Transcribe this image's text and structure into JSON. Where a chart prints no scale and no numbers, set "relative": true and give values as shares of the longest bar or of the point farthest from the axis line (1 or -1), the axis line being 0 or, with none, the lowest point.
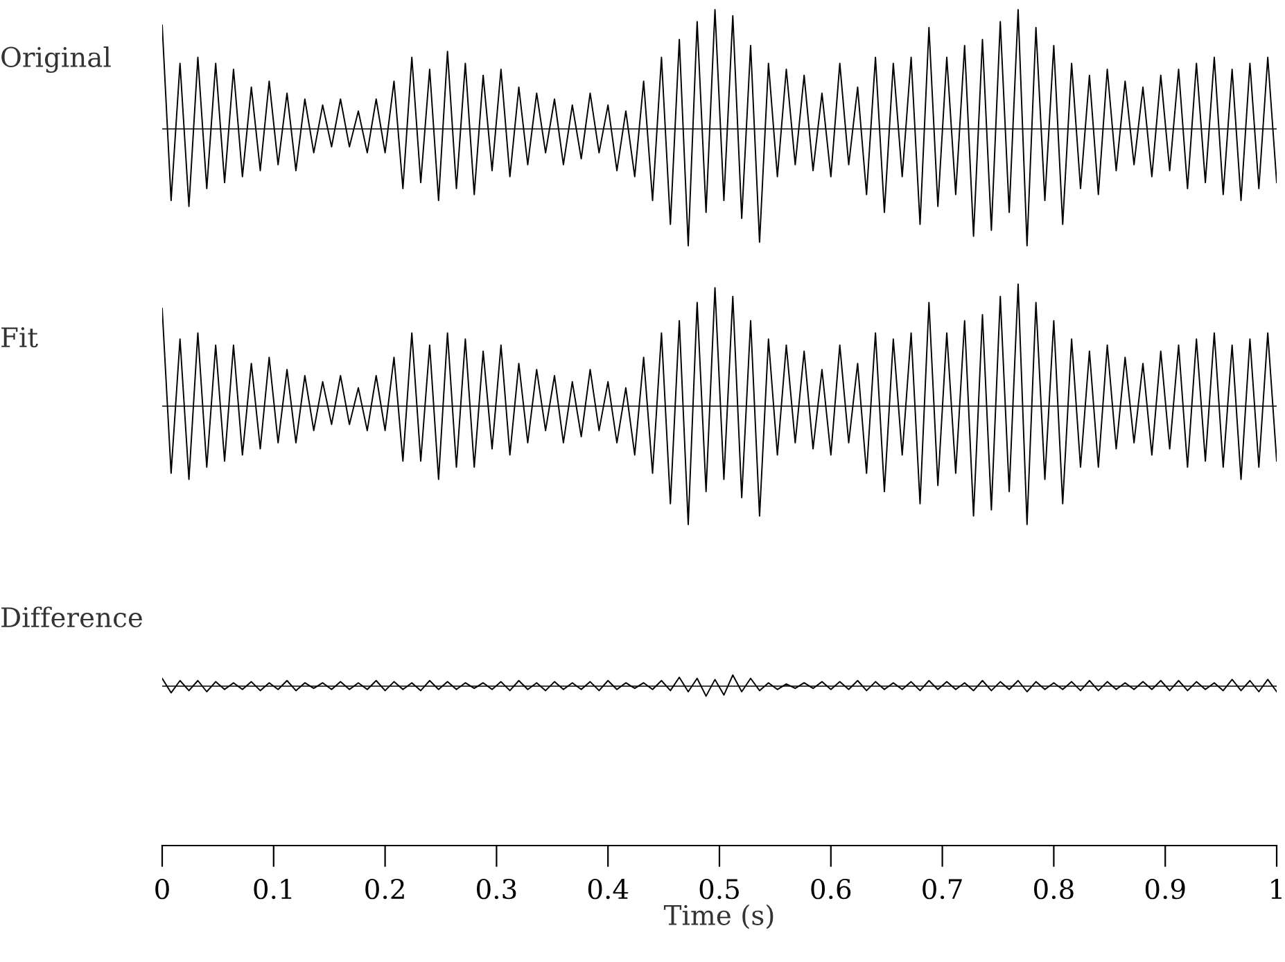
{
  "chart_data": [
    {
      "type": "line",
      "title": "Original",
      "relative": true,
      "xlim": [
        0,
        1
      ],
      "tick_labels": false,
      "x": [
        0,
        0.008,
        0.016,
        0.024,
        0.032,
        0.04,
        0.048,
        0.056,
        0.064,
        0.072,
        0.08,
        0.088,
        0.096,
        0.104,
        0.112,
        0.12,
        0.128,
        0.136,
        0.144,
        0.152,
        0.16,
        0.168,
        0.176,
        0.184,
        0.192,
        0.2,
        0.208,
        0.216,
        0.224,
        0.232,
        0.24,
        0.248,
        0.256,
        0.264,
        0.272,
        0.28,
        0.288,
        0.296,
        0.304,
        0.312,
        0.32,
        0.328,
        0.336,
        0.344,
        0.352,
        0.36,
        0.368,
        0.376,
        0.384,
        0.392,
        0.4,
        0.408,
        0.416,
        0.424,
        0.432,
        0.44,
        0.448,
        0.456,
        0.464,
        0.472,
        0.48,
        0.488,
        0.496,
        0.504,
        0.512,
        0.52,
        0.528,
        0.536,
        0.544,
        0.552,
        0.56,
        0.568,
        0.576,
        0.584,
        0.592,
        0.6,
        0.608,
        0.616,
        0.624,
        0.632,
        0.64,
        0.648,
        0.656,
        0.664,
        0.672,
        0.68,
        0.688,
        0.696,
        0.704,
        0.712,
        0.72,
        0.728,
        0.736,
        0.744,
        0.752,
        0.76,
        0.768,
        0.776,
        0.784,
        0.792,
        0.8,
        0.808,
        0.816,
        0.824,
        0.832,
        0.84,
        0.848,
        0.856,
        0.864,
        0.872,
        0.88,
        0.888,
        0.896,
        0.904,
        0.912,
        0.92,
        0.928,
        0.936,
        0.944,
        0.952,
        0.96,
        0.968,
        0.976,
        0.984,
        0.992,
        1.0
      ],
      "series": [
        {
          "color": "#000000",
          "values": [
            0.87,
            -0.6,
            0.55,
            -0.65,
            0.6,
            -0.5,
            0.55,
            -0.45,
            0.5,
            -0.4,
            0.35,
            -0.35,
            0.4,
            -0.3,
            0.3,
            -0.35,
            0.25,
            -0.2,
            0.2,
            -0.15,
            0.25,
            -0.15,
            0.15,
            -0.2,
            0.25,
            -0.2,
            0.4,
            -0.5,
            0.6,
            -0.45,
            0.5,
            -0.6,
            0.65,
            -0.5,
            0.55,
            -0.55,
            0.45,
            -0.35,
            0.5,
            -0.4,
            0.35,
            -0.3,
            0.3,
            -0.2,
            0.25,
            -0.3,
            0.2,
            -0.25,
            0.3,
            -0.2,
            0.2,
            -0.35,
            0.15,
            -0.4,
            0.4,
            -0.6,
            0.6,
            -0.8,
            0.75,
            -0.98,
            0.9,
            -0.7,
            1.0,
            -0.6,
            0.95,
            -0.75,
            0.7,
            -0.95,
            0.55,
            -0.4,
            0.5,
            -0.3,
            0.45,
            -0.35,
            0.3,
            -0.4,
            0.55,
            -0.3,
            0.35,
            -0.55,
            0.6,
            -0.7,
            0.55,
            -0.4,
            0.6,
            -0.8,
            0.85,
            -0.65,
            0.6,
            -0.55,
            0.7,
            -0.9,
            0.75,
            -0.85,
            0.9,
            -0.7,
            1.0,
            -0.98,
            0.85,
            -0.6,
            0.7,
            -0.8,
            0.55,
            -0.5,
            0.45,
            -0.55,
            0.5,
            -0.35,
            0.4,
            -0.3,
            0.35,
            -0.4,
            0.45,
            -0.35,
            0.5,
            -0.5,
            0.55,
            -0.45,
            0.6,
            -0.55,
            0.5,
            -0.6,
            0.55,
            -0.5,
            0.6,
            -0.45
          ]
        }
      ]
    },
    {
      "type": "line",
      "title": "Fit",
      "relative": true,
      "xlim": [
        0,
        1
      ],
      "tick_labels": false,
      "x": [
        0,
        0.008,
        0.016,
        0.024,
        0.032,
        0.04,
        0.048,
        0.056,
        0.064,
        0.072,
        0.08,
        0.088,
        0.096,
        0.104,
        0.112,
        0.12,
        0.128,
        0.136,
        0.144,
        0.152,
        0.16,
        0.168,
        0.176,
        0.184,
        0.192,
        0.2,
        0.208,
        0.216,
        0.224,
        0.232,
        0.24,
        0.248,
        0.256,
        0.264,
        0.272,
        0.28,
        0.288,
        0.296,
        0.304,
        0.312,
        0.32,
        0.328,
        0.336,
        0.344,
        0.352,
        0.36,
        0.368,
        0.376,
        0.384,
        0.392,
        0.4,
        0.408,
        0.416,
        0.424,
        0.432,
        0.44,
        0.448,
        0.456,
        0.464,
        0.472,
        0.48,
        0.488,
        0.496,
        0.504,
        0.512,
        0.52,
        0.528,
        0.536,
        0.544,
        0.552,
        0.56,
        0.568,
        0.576,
        0.584,
        0.592,
        0.6,
        0.608,
        0.616,
        0.624,
        0.632,
        0.64,
        0.648,
        0.656,
        0.664,
        0.672,
        0.68,
        0.688,
        0.696,
        0.704,
        0.712,
        0.72,
        0.728,
        0.736,
        0.744,
        0.752,
        0.76,
        0.768,
        0.776,
        0.784,
        0.792,
        0.8,
        0.808,
        0.816,
        0.824,
        0.832,
        0.84,
        0.848,
        0.856,
        0.864,
        0.872,
        0.88,
        0.888,
        0.896,
        0.904,
        0.912,
        0.92,
        0.928,
        0.936,
        0.944,
        0.952,
        0.96,
        0.968,
        0.976,
        0.984,
        0.992,
        1.0
      ],
      "series": [
        {
          "color": "#000000",
          "values": [
            0.8,
            -0.55,
            0.55,
            -0.6,
            0.6,
            -0.5,
            0.5,
            -0.45,
            0.5,
            -0.4,
            0.35,
            -0.35,
            0.4,
            -0.3,
            0.3,
            -0.3,
            0.25,
            -0.2,
            0.2,
            -0.15,
            0.25,
            -0.15,
            0.15,
            -0.2,
            0.25,
            -0.2,
            0.4,
            -0.45,
            0.6,
            -0.45,
            0.5,
            -0.6,
            0.6,
            -0.5,
            0.55,
            -0.5,
            0.45,
            -0.35,
            0.5,
            -0.4,
            0.35,
            -0.3,
            0.3,
            -0.2,
            0.25,
            -0.3,
            0.2,
            -0.25,
            0.3,
            -0.2,
            0.2,
            -0.3,
            0.15,
            -0.4,
            0.4,
            -0.55,
            0.6,
            -0.8,
            0.7,
            -0.97,
            0.85,
            -0.7,
            0.97,
            -0.6,
            0.9,
            -0.75,
            0.7,
            -0.9,
            0.55,
            -0.4,
            0.5,
            -0.3,
            0.45,
            -0.35,
            0.3,
            -0.4,
            0.5,
            -0.3,
            0.35,
            -0.55,
            0.6,
            -0.7,
            0.55,
            -0.4,
            0.6,
            -0.8,
            0.85,
            -0.65,
            0.6,
            -0.55,
            0.7,
            -0.9,
            0.75,
            -0.85,
            0.9,
            -0.7,
            1.0,
            -0.97,
            0.85,
            -0.6,
            0.7,
            -0.8,
            0.55,
            -0.5,
            0.45,
            -0.5,
            0.5,
            -0.35,
            0.4,
            -0.3,
            0.35,
            -0.4,
            0.45,
            -0.35,
            0.5,
            -0.5,
            0.55,
            -0.45,
            0.6,
            -0.5,
            0.5,
            -0.6,
            0.55,
            -0.5,
            0.6,
            -0.45
          ]
        }
      ]
    },
    {
      "type": "line",
      "title": "Difference",
      "relative": true,
      "xlabel": "Time (s)",
      "xlim": [
        0,
        1
      ],
      "xticks": [
        0,
        0.1,
        0.2,
        0.3,
        0.4,
        0.5,
        0.6,
        0.7,
        0.8,
        0.9,
        1
      ],
      "tick_labels": "x",
      "x": [
        0,
        0.008,
        0.016,
        0.024,
        0.032,
        0.04,
        0.048,
        0.056,
        0.064,
        0.072,
        0.08,
        0.088,
        0.096,
        0.104,
        0.112,
        0.12,
        0.128,
        0.136,
        0.144,
        0.152,
        0.16,
        0.168,
        0.176,
        0.184,
        0.192,
        0.2,
        0.208,
        0.216,
        0.224,
        0.232,
        0.24,
        0.248,
        0.256,
        0.264,
        0.272,
        0.28,
        0.288,
        0.296,
        0.304,
        0.312,
        0.32,
        0.328,
        0.336,
        0.344,
        0.352,
        0.36,
        0.368,
        0.376,
        0.384,
        0.392,
        0.4,
        0.408,
        0.416,
        0.424,
        0.432,
        0.44,
        0.448,
        0.456,
        0.464,
        0.472,
        0.48,
        0.488,
        0.496,
        0.504,
        0.512,
        0.52,
        0.528,
        0.536,
        0.544,
        0.552,
        0.56,
        0.568,
        0.576,
        0.584,
        0.592,
        0.6,
        0.608,
        0.616,
        0.624,
        0.632,
        0.64,
        0.648,
        0.656,
        0.664,
        0.672,
        0.68,
        0.688,
        0.696,
        0.704,
        0.712,
        0.72,
        0.728,
        0.736,
        0.744,
        0.752,
        0.76,
        0.768,
        0.776,
        0.784,
        0.792,
        0.8,
        0.808,
        0.816,
        0.824,
        0.832,
        0.84,
        0.848,
        0.856,
        0.864,
        0.872,
        0.88,
        0.888,
        0.896,
        0.904,
        0.912,
        0.92,
        0.928,
        0.936,
        0.944,
        0.952,
        0.96,
        0.968,
        0.976,
        0.984,
        0.992,
        1.0
      ],
      "series": [
        {
          "color": "#000000",
          "values": [
            0.7,
            -0.6,
            0.5,
            -0.4,
            0.5,
            -0.5,
            0.4,
            -0.3,
            0.3,
            -0.3,
            0.4,
            -0.4,
            0.3,
            -0.3,
            0.5,
            -0.4,
            0.3,
            -0.2,
            0.3,
            -0.3,
            0.4,
            -0.3,
            0.3,
            -0.3,
            0.5,
            -0.4,
            0.4,
            -0.3,
            0.3,
            -0.4,
            0.5,
            -0.3,
            0.4,
            -0.3,
            0.3,
            -0.2,
            0.3,
            -0.3,
            0.4,
            -0.4,
            0.5,
            -0.3,
            0.3,
            -0.4,
            0.4,
            -0.3,
            0.3,
            -0.3,
            0.4,
            -0.4,
            0.5,
            -0.3,
            0.3,
            -0.2,
            0.3,
            -0.3,
            0.5,
            -0.4,
            0.8,
            -0.5,
            0.7,
            -0.9,
            0.6,
            -0.8,
            1.0,
            -0.5,
            0.7,
            -0.4,
            0.3,
            -0.3,
            0.2,
            -0.2,
            0.3,
            -0.2,
            0.4,
            -0.3,
            0.4,
            -0.3,
            0.5,
            -0.4,
            0.4,
            -0.3,
            0.3,
            -0.3,
            0.4,
            -0.4,
            0.5,
            -0.3,
            0.4,
            -0.3,
            0.3,
            -0.4,
            0.5,
            -0.4,
            0.4,
            -0.3,
            0.5,
            -0.5,
            0.4,
            -0.3,
            0.3,
            -0.3,
            0.4,
            -0.4,
            0.5,
            -0.4,
            0.4,
            -0.3,
            0.3,
            -0.3,
            0.4,
            -0.3,
            0.5,
            -0.4,
            0.5,
            -0.4,
            0.4,
            -0.3,
            0.3,
            -0.4,
            0.6,
            -0.4,
            0.5,
            -0.5,
            0.6,
            -0.5
          ]
        }
      ]
    }
  ]
}
